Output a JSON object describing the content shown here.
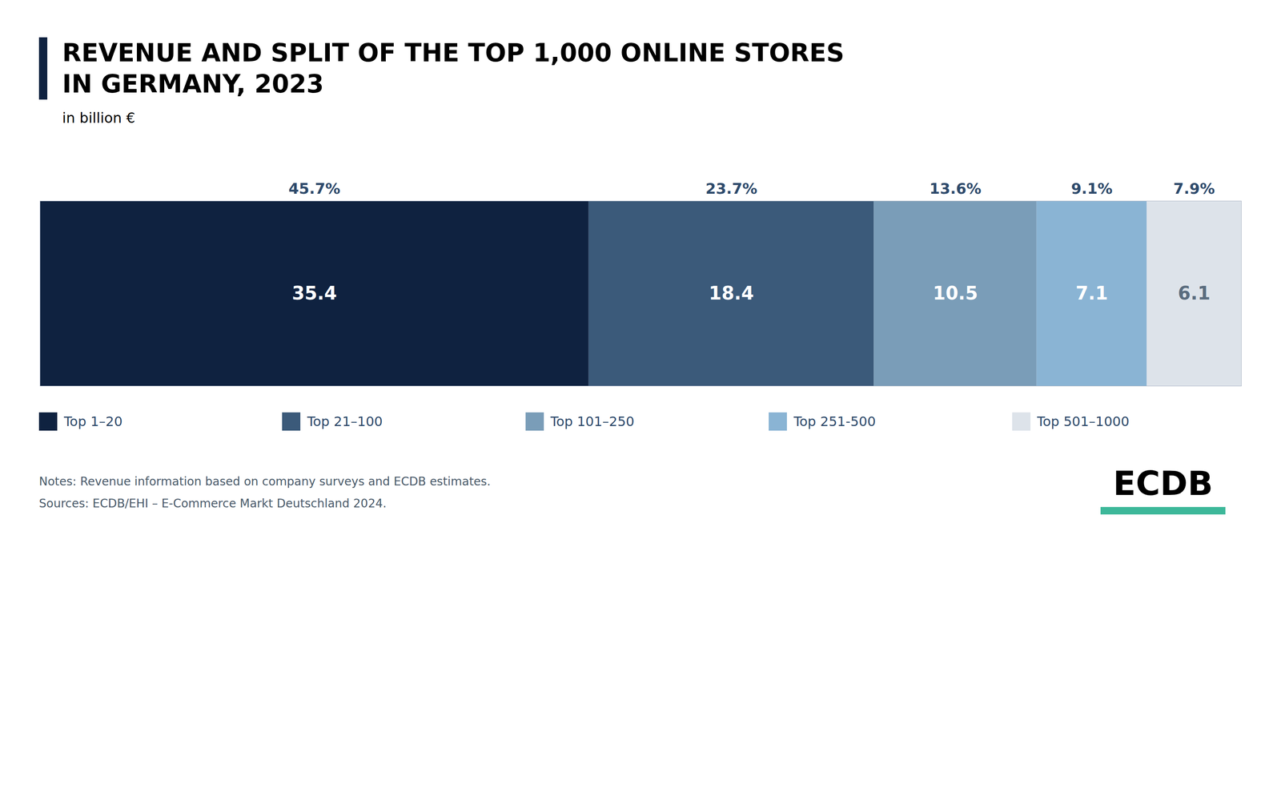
{
  "chart_data": {
    "type": "bar",
    "orientation": "horizontal",
    "stacked": true,
    "title": "REVENUE AND SPLIT OF THE TOP 1,000 ONLINE STORES\nIN GERMANY, 2023",
    "subtitle": "in billion €",
    "categories": [
      null
    ],
    "series": [
      {
        "name": "Top 1–20",
        "color": "#0f2240",
        "values": [
          35.4
        ],
        "share_label": "45.7%"
      },
      {
        "name": "Top 21–100",
        "color": "#3b5a7a",
        "values": [
          18.4
        ],
        "share_label": "23.7%"
      },
      {
        "name": "Top 101–250",
        "color": "#7a9db8",
        "values": [
          10.5
        ],
        "share_label": "13.6%"
      },
      {
        "name": "Top 251-500",
        "color": "#8ab4d4",
        "values": [
          7.1
        ],
        "share_label": "9.1%"
      },
      {
        "name": "Top 501–1000",
        "color": "#dde3ea",
        "values": [
          6.1
        ],
        "share_label": "7.9%"
      }
    ],
    "xlim": [
      0,
      77.5
    ],
    "data_labels": true,
    "tick_labels": false,
    "grid": false,
    "legend": "bottom",
    "notes": [
      "Notes: Revenue information based on company surveys and ECDB estimates.",
      "Sources: ECDB/EHI – E-Commerce Markt Deutschland 2024."
    ],
    "logo": "ECDB"
  }
}
